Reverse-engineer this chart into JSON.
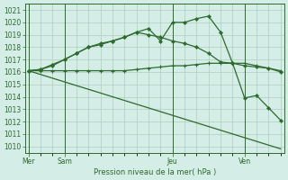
{
  "title": "Pression niveau de la mer( hPa )",
  "background_color": "#d4ede6",
  "grid_color": "#b0ccbb",
  "line_color": "#2d6a2d",
  "ylim": [
    1009.5,
    1021.5
  ],
  "yticks": [
    1010,
    1011,
    1012,
    1013,
    1014,
    1015,
    1016,
    1017,
    1018,
    1019,
    1020,
    1021
  ],
  "day_labels": [
    "Mer",
    "Sam",
    "Jeu",
    "Ven"
  ],
  "day_positions": [
    0,
    3,
    12,
    18
  ],
  "n_points": 22,
  "series1_x": [
    0,
    1,
    2,
    3,
    4,
    5,
    6,
    7,
    8,
    9,
    10,
    11,
    12,
    13,
    14,
    15,
    16,
    17,
    18,
    19,
    20,
    21
  ],
  "series1_y": [
    1016.1,
    1016.2,
    1016.6,
    1017.0,
    1017.5,
    1018.0,
    1018.2,
    1018.5,
    1018.8,
    1019.2,
    1019.5,
    1018.5,
    1020.0,
    1020.0,
    1020.3,
    1020.5,
    1019.2,
    1016.7,
    1013.9,
    1014.1,
    1013.1,
    1012.1
  ],
  "series2_x": [
    0,
    1,
    2,
    3,
    4,
    5,
    6,
    7,
    8,
    9,
    10,
    11,
    12,
    13,
    14,
    15,
    16,
    17,
    18,
    19,
    20,
    21
  ],
  "series2_y": [
    1016.1,
    1016.2,
    1016.5,
    1017.0,
    1017.5,
    1018.0,
    1018.3,
    1018.5,
    1018.8,
    1019.2,
    1019.0,
    1018.8,
    1018.5,
    1018.3,
    1018.0,
    1017.5,
    1016.8,
    1016.7,
    1016.5,
    1016.4,
    1016.3,
    1016.0
  ],
  "series3_x": [
    0,
    1,
    2,
    3,
    4,
    5,
    6,
    7,
    8,
    9,
    10,
    11,
    12,
    13,
    14,
    15,
    16,
    17,
    18,
    19,
    20,
    21
  ],
  "series3_y": [
    1016.1,
    1016.1,
    1016.1,
    1016.1,
    1016.1,
    1016.1,
    1016.1,
    1016.1,
    1016.1,
    1016.2,
    1016.3,
    1016.4,
    1016.5,
    1016.5,
    1016.6,
    1016.7,
    1016.7,
    1016.7,
    1016.7,
    1016.5,
    1016.3,
    1016.1
  ],
  "series4_x": [
    0,
    21
  ],
  "series4_y": [
    1016.1,
    1009.8
  ],
  "xlim": [
    -0.3,
    21.3
  ]
}
